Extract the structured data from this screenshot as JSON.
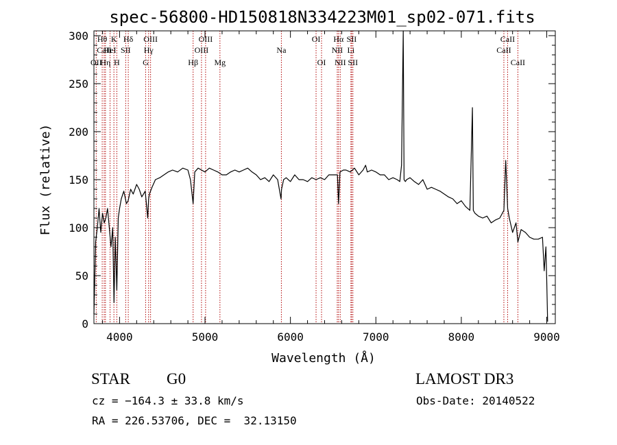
{
  "chart_data": {
    "type": "line",
    "title": "spec-56800-HD150818N334223M01_sp02-071.fits",
    "xlabel": "Wavelength (Å)",
    "ylabel": "Flux (relative)",
    "xlim": [
      3700,
      9100
    ],
    "ylim": [
      0,
      305
    ],
    "xticks": [
      4000,
      5000,
      6000,
      7000,
      8000,
      9000
    ],
    "yticks": [
      0,
      50,
      100,
      150,
      200,
      250,
      300
    ],
    "series": [
      {
        "name": "flux",
        "color": "#000000",
        "x": [
          3700,
          3720,
          3740,
          3760,
          3780,
          3800,
          3820,
          3840,
          3860,
          3880,
          3900,
          3920,
          3935,
          3950,
          3968,
          3985,
          4000,
          4020,
          4050,
          4080,
          4100,
          4130,
          4160,
          4200,
          4230,
          4260,
          4300,
          4330,
          4340,
          4350,
          4380,
          4420,
          4470,
          4520,
          4570,
          4620,
          4680,
          4740,
          4800,
          4830,
          4861,
          4880,
          4920,
          4960,
          5000,
          5050,
          5100,
          5150,
          5200,
          5250,
          5300,
          5350,
          5400,
          5450,
          5500,
          5550,
          5600,
          5650,
          5700,
          5750,
          5800,
          5850,
          5890,
          5896,
          5920,
          5950,
          6000,
          6050,
          6100,
          6150,
          6200,
          6250,
          6300,
          6350,
          6400,
          6450,
          6500,
          6550,
          6563,
          6580,
          6620,
          6650,
          6700,
          6750,
          6800,
          6850,
          6880,
          6900,
          6950,
          7000,
          7050,
          7100,
          7150,
          7200,
          7250,
          7280,
          7300,
          7320,
          7330,
          7345,
          7360,
          7400,
          7450,
          7500,
          7550,
          7600,
          7650,
          7700,
          7750,
          7800,
          7850,
          7900,
          7950,
          8000,
          8050,
          8100,
          8130,
          8140,
          8160,
          8200,
          8250,
          8300,
          8350,
          8400,
          8450,
          8498,
          8520,
          8542,
          8562,
          8600,
          8640,
          8662,
          8700,
          8750,
          8800,
          8850,
          8900,
          8950,
          8970,
          8990,
          9000,
          9010
        ],
        "y": [
          10,
          85,
          100,
          120,
          95,
          115,
          105,
          110,
          120,
          100,
          80,
          100,
          22,
          90,
          35,
          110,
          120,
          130,
          138,
          125,
          128,
          140,
          135,
          145,
          140,
          132,
          138,
          110,
          130,
          135,
          142,
          150,
          152,
          155,
          158,
          160,
          158,
          162,
          160,
          150,
          125,
          158,
          162,
          160,
          158,
          162,
          160,
          158,
          155,
          155,
          158,
          160,
          158,
          160,
          162,
          158,
          155,
          150,
          152,
          148,
          155,
          150,
          130,
          140,
          150,
          152,
          148,
          155,
          150,
          150,
          148,
          152,
          150,
          152,
          150,
          155,
          155,
          155,
          125,
          158,
          160,
          160,
          158,
          162,
          155,
          160,
          165,
          158,
          160,
          158,
          155,
          155,
          150,
          152,
          150,
          148,
          165,
          305,
          150,
          148,
          150,
          152,
          148,
          145,
          150,
          140,
          142,
          140,
          138,
          135,
          132,
          130,
          125,
          128,
          122,
          118,
          225,
          118,
          115,
          112,
          110,
          112,
          105,
          108,
          110,
          118,
          170,
          120,
          110,
          95,
          105,
          85,
          98,
          95,
          90,
          88,
          88,
          90,
          55,
          80,
          45,
          2
        ]
      }
    ],
    "lines": [
      {
        "name": "Hθ",
        "x": 3797,
        "row": 0
      },
      {
        "name": "CaII",
        "x": 3820,
        "row": 1
      },
      {
        "name": "OII",
        "x": 3727,
        "row": 2
      },
      {
        "name": "Hη",
        "x": 3835,
        "row": 2
      },
      {
        "name": "K",
        "x": 3934,
        "row": 0
      },
      {
        "name": "HeI",
        "x": 3889,
        "row": 1
      },
      {
        "name": "H",
        "x": 3968,
        "row": 2
      },
      {
        "name": "Hδ",
        "x": 4102,
        "row": 0
      },
      {
        "name": "SII",
        "x": 4072,
        "row": 1
      },
      {
        "name": "OIII",
        "x": 4363,
        "row": 0
      },
      {
        "name": "Hγ",
        "x": 4340,
        "row": 1
      },
      {
        "name": "G",
        "x": 4305,
        "row": 2
      },
      {
        "name": "Hβ",
        "x": 4861,
        "row": 2
      },
      {
        "name": "OIII",
        "x": 5007,
        "row": 0
      },
      {
        "name": "OIII",
        "x": 4959,
        "row": 1
      },
      {
        "name": "Mg",
        "x": 5175,
        "row": 2
      },
      {
        "name": "Na",
        "x": 5894,
        "row": 1
      },
      {
        "name": "OI",
        "x": 6300,
        "row": 0
      },
      {
        "name": "OI",
        "x": 6364,
        "row": 2
      },
      {
        "name": "Hα",
        "x": 6563,
        "row": 0
      },
      {
        "name": "NII",
        "x": 6548,
        "row": 1
      },
      {
        "name": "NII",
        "x": 6583,
        "row": 2
      },
      {
        "name": "SII",
        "x": 6716,
        "row": 0
      },
      {
        "name": "Li",
        "x": 6708,
        "row": 1
      },
      {
        "name": "SII",
        "x": 6731,
        "row": 2
      },
      {
        "name": "CaII",
        "x": 8542,
        "row": 0
      },
      {
        "name": "CaII",
        "x": 8498,
        "row": 1
      },
      {
        "name": "CaII",
        "x": 8662,
        "row": 2
      }
    ]
  },
  "info": {
    "object_class": "STAR",
    "subclass": "G0",
    "survey": "LAMOST DR3",
    "redshift": "cz = −164.3 ± 33.8 km/s",
    "obs_date": "Obs-Date: 20140522",
    "coords": "RA = 226.53706, DEC =  32.13150"
  },
  "colors": {
    "line_marker": "#b00000",
    "spectrum": "#000000",
    "axes": "#000000"
  }
}
